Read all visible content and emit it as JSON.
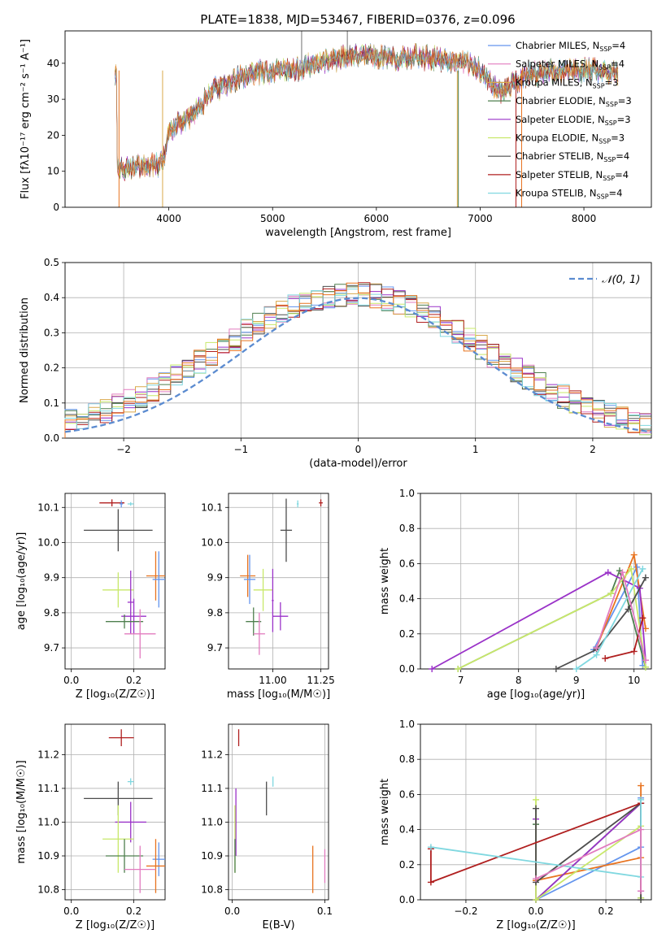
{
  "title": "PLATE=1838, MJD=53467, FIBERID=0376, z=0.096",
  "colors": {
    "c1": "#6495ed",
    "c2": "#e8731f",
    "c3": "#4f7f4f",
    "c4": "#9a32c8",
    "c5": "#d9a84a",
    "c6": "#c8e86a",
    "c7": "#4d4d4d",
    "c8": "#b01f1f",
    "c9": "#80d8e0",
    "c10": "#e27bbf"
  },
  "chart_data": [
    {
      "id": "spectrum",
      "type": "line",
      "xlabel": "wavelength [Angstrom, rest frame]",
      "ylabel": "Flux [fλ10⁻¹⁷ erg cm⁻² s⁻¹ A⁻¹]",
      "xlim": [
        3000,
        8650
      ],
      "ylim": [
        0,
        49
      ],
      "xticks": [
        "4000",
        "5000",
        "6000",
        "7000",
        "8000"
      ],
      "yticks": [
        "0",
        "10",
        "20",
        "30",
        "40"
      ],
      "grid": false,
      "legend_position": "top-right",
      "legend": [
        {
          "label": "Chabrier MILES, N",
          "sub": "SSP",
          "suffix": "=4",
          "color": "#6495ed"
        },
        {
          "label": "Salpeter MILES, N",
          "sub": "SSP",
          "suffix": "=4",
          "color": "#e27bbf"
        },
        {
          "label": "Kroupa MILES, N",
          "sub": "SSP",
          "suffix": "=3",
          "color": "#d9a84a"
        },
        {
          "label": "Chabrier ELODIE, N",
          "sub": "SSP",
          "suffix": "=3",
          "color": "#4f7f4f"
        },
        {
          "label": "Salpeter ELODIE, N",
          "sub": "SSP",
          "suffix": "=3",
          "color": "#9a32c8"
        },
        {
          "label": "Kroupa ELODIE, N",
          "sub": "SSP",
          "suffix": "=3",
          "color": "#c8e86a"
        },
        {
          "label": "Chabrier STELIB, N",
          "sub": "SSP",
          "suffix": "=4",
          "color": "#4d4d4d"
        },
        {
          "label": "Salpeter STELIB, N",
          "sub": "SSP",
          "suffix": "=4",
          "color": "#b01f1f"
        },
        {
          "label": "Kroupa STELIB, N",
          "sub": "SSP",
          "suffix": "=4",
          "color": "#80d8e0"
        }
      ],
      "continuum": [
        [
          3500,
          10
        ],
        [
          3600,
          11
        ],
        [
          3800,
          12
        ],
        [
          3900,
          12
        ],
        [
          3960,
          14
        ],
        [
          4000,
          21
        ],
        [
          4100,
          23
        ],
        [
          4200,
          25
        ],
        [
          4300,
          28
        ],
        [
          4400,
          32
        ],
        [
          4600,
          35
        ],
        [
          4800,
          37
        ],
        [
          5000,
          38
        ],
        [
          5200,
          38
        ],
        [
          5400,
          40
        ],
        [
          5600,
          41
        ],
        [
          5800,
          42
        ],
        [
          6000,
          42
        ],
        [
          6200,
          41
        ],
        [
          6400,
          42
        ],
        [
          6600,
          41
        ],
        [
          6800,
          40
        ],
        [
          6900,
          40
        ],
        [
          7000,
          38
        ],
        [
          7100,
          35
        ],
        [
          7200,
          32
        ],
        [
          7300,
          34
        ],
        [
          7500,
          37
        ],
        [
          7700,
          38
        ],
        [
          7900,
          38
        ],
        [
          8100,
          38
        ],
        [
          8300,
          37
        ]
      ]
    },
    {
      "id": "residuals",
      "type": "histogram",
      "xlabel": "(data-model)/error",
      "ylabel": "Normed distribution",
      "xlim": [
        -2.5,
        2.5
      ],
      "ylim": [
        0,
        0.5
      ],
      "xticks": [
        "−2",
        "−1",
        "0",
        "1",
        "2"
      ],
      "yticks": [
        "0.0",
        "0.1",
        "0.2",
        "0.3",
        "0.4",
        "0.5"
      ],
      "grid": true,
      "legend_position": "top-right",
      "legend_label": "𝒩(0, 1)",
      "bin_width": 0.1
    },
    {
      "id": "age_vs_Z",
      "type": "scatter",
      "xlabel": "Z [log₁₀(Z/Z☉)]",
      "ylabel": "age [log₁₀(age/yr)]",
      "xlim": [
        -0.02,
        0.3
      ],
      "ylim": [
        9.64,
        10.14
      ],
      "xticks": [
        "0.0",
        "0.2"
      ],
      "yticks": [
        "9.7",
        "9.8",
        "9.9",
        "10.0",
        "10.1"
      ],
      "points": [
        {
          "x": 0.13,
          "y": 10.113,
          "xe": 0.04,
          "ye": 0.01,
          "c": "#b01f1f"
        },
        {
          "x": 0.19,
          "y": 10.11,
          "xe": 0.01,
          "ye": 0.005,
          "c": "#80d8e0"
        },
        {
          "x": 0.16,
          "y": 10.11,
          "xe": 0.005,
          "ye": 0.01,
          "c": "#6495ed"
        },
        {
          "x": 0.15,
          "y": 10.035,
          "xe": 0.11,
          "ye": 0.06,
          "c": "#4d4d4d"
        },
        {
          "x": 0.27,
          "y": 9.905,
          "xe": 0.03,
          "ye": 0.07,
          "c": "#e8731f"
        },
        {
          "x": 0.28,
          "y": 9.895,
          "xe": 0.02,
          "ye": 0.08,
          "c": "#6495ed"
        },
        {
          "x": 0.15,
          "y": 9.865,
          "xe": 0.05,
          "ye": 0.05,
          "c": "#c8e86a"
        },
        {
          "x": 0.19,
          "y": 9.83,
          "xe": 0.01,
          "ye": 0.09,
          "c": "#9a32c8"
        },
        {
          "x": 0.2,
          "y": 9.79,
          "xe": 0.04,
          "ye": 0.05,
          "c": "#9a32c8"
        },
        {
          "x": 0.17,
          "y": 9.775,
          "xe": 0.06,
          "ye": 0.02,
          "c": "#4f7f4f"
        },
        {
          "x": 0.22,
          "y": 9.74,
          "xe": 0.05,
          "ye": 0.07,
          "c": "#e27bbf"
        }
      ]
    },
    {
      "id": "age_vs_mass",
      "type": "scatter",
      "xlabel": "mass [log₁₀(M/M☉)]",
      "ylabel": "",
      "xlim": [
        10.77,
        11.29
      ],
      "ylim": [
        9.64,
        10.14
      ],
      "xticks": [
        "11.00",
        "11.25"
      ],
      "yticks": [
        "9.7",
        "9.8",
        "9.9",
        "10.0",
        "10.1"
      ],
      "points": [
        {
          "x": 11.25,
          "y": 10.113,
          "xe": 0.01,
          "ye": 0.01,
          "c": "#b01f1f"
        },
        {
          "x": 11.13,
          "y": 10.11,
          "xe": 0.005,
          "ye": 0.01,
          "c": "#80d8e0"
        },
        {
          "x": 11.07,
          "y": 10.035,
          "xe": 0.03,
          "ye": 0.09,
          "c": "#4d4d4d"
        },
        {
          "x": 10.87,
          "y": 9.905,
          "xe": 0.04,
          "ye": 0.06,
          "c": "#e8731f"
        },
        {
          "x": 10.88,
          "y": 9.895,
          "xe": 0.03,
          "ye": 0.07,
          "c": "#6495ed"
        },
        {
          "x": 10.95,
          "y": 9.865,
          "xe": 0.05,
          "ye": 0.06,
          "c": "#c8e86a"
        },
        {
          "x": 11.0,
          "y": 9.835,
          "xe": 0.005,
          "ye": 0.09,
          "c": "#9a32c8"
        },
        {
          "x": 11.04,
          "y": 9.79,
          "xe": 0.04,
          "ye": 0.04,
          "c": "#9a32c8"
        },
        {
          "x": 10.9,
          "y": 9.775,
          "xe": 0.04,
          "ye": 0.04,
          "c": "#4f7f4f"
        },
        {
          "x": 10.93,
          "y": 9.74,
          "xe": 0.03,
          "ye": 0.06,
          "c": "#e27bbf"
        }
      ]
    },
    {
      "id": "weight_vs_age",
      "type": "line",
      "xlabel": "age [log₁₀(age/yr)]",
      "ylabel": "mass weight",
      "xlim": [
        6.3,
        10.3
      ],
      "ylim": [
        0,
        1
      ],
      "xticks": [
        "7",
        "8",
        "9",
        "10"
      ],
      "yticks": [
        "0.0",
        "0.2",
        "0.4",
        "0.6",
        "0.8",
        "1.0"
      ],
      "grid": true,
      "series": [
        {
          "c": "#6495ed",
          "pts": [
            [
              9.3,
              0.11
            ],
            [
              10.05,
              0.58
            ],
            [
              10.15,
              0.02
            ]
          ]
        },
        {
          "c": "#e8731f",
          "pts": [
            [
              9.35,
              0.12
            ],
            [
              10.0,
              0.65
            ],
            [
              10.2,
              0.23
            ]
          ]
        },
        {
          "c": "#4f7f4f",
          "pts": [
            [
              6.95,
              0.0
            ],
            [
              9.6,
              0.43
            ],
            [
              9.75,
              0.56
            ],
            [
              10.2,
              0.01
            ]
          ]
        },
        {
          "c": "#9a32c8",
          "pts": [
            [
              6.5,
              0.0
            ],
            [
              9.55,
              0.55
            ],
            [
              10.1,
              0.46
            ],
            [
              10.2,
              0.05
            ]
          ]
        },
        {
          "c": "#c8e86a",
          "pts": [
            [
              6.95,
              0.0
            ],
            [
              9.6,
              0.43
            ],
            [
              9.95,
              0.57
            ],
            [
              10.2,
              0.01
            ]
          ]
        },
        {
          "c": "#4d4d4d",
          "pts": [
            [
              8.65,
              0.0
            ],
            [
              9.35,
              0.11
            ],
            [
              9.9,
              0.34
            ],
            [
              10.2,
              0.52
            ]
          ]
        },
        {
          "c": "#b01f1f",
          "pts": [
            [
              9.5,
              0.06
            ],
            [
              10.0,
              0.1
            ],
            [
              10.15,
              0.29
            ]
          ]
        },
        {
          "c": "#80d8e0",
          "pts": [
            [
              9.0,
              0.0
            ],
            [
              9.35,
              0.08
            ],
            [
              10.15,
              0.57
            ]
          ]
        },
        {
          "c": "#e27bbf",
          "pts": [
            [
              9.35,
              0.12
            ],
            [
              9.8,
              0.55
            ],
            [
              10.2,
              0.05
            ]
          ]
        }
      ]
    },
    {
      "id": "mass_vs_Z",
      "type": "scatter",
      "xlabel": "Z [log₁₀(Z/Z☉)]",
      "ylabel": "mass [log₁₀(M/M☉)]",
      "xlim": [
        -0.02,
        0.3
      ],
      "ylim": [
        10.77,
        11.29
      ],
      "xticks": [
        "0.0",
        "0.2"
      ],
      "yticks": [
        "10.8",
        "10.9",
        "11.0",
        "11.1",
        "11.2"
      ],
      "points": [
        {
          "x": 0.16,
          "y": 11.25,
          "xe": 0.04,
          "ye": 0.025,
          "c": "#b01f1f"
        },
        {
          "x": 0.19,
          "y": 11.12,
          "xe": 0.01,
          "ye": 0.01,
          "c": "#80d8e0"
        },
        {
          "x": 0.15,
          "y": 11.07,
          "xe": 0.11,
          "ye": 0.05,
          "c": "#4d4d4d"
        },
        {
          "x": 0.19,
          "y": 11.0,
          "xe": 0.05,
          "ye": 0.06,
          "c": "#9a32c8"
        },
        {
          "x": 0.15,
          "y": 10.95,
          "xe": 0.05,
          "ye": 0.1,
          "c": "#c8e86a"
        },
        {
          "x": 0.17,
          "y": 10.9,
          "xe": 0.06,
          "ye": 0.05,
          "c": "#4f7f4f"
        },
        {
          "x": 0.28,
          "y": 10.89,
          "xe": 0.02,
          "ye": 0.05,
          "c": "#6495ed"
        },
        {
          "x": 0.27,
          "y": 10.87,
          "xe": 0.03,
          "ye": 0.08,
          "c": "#e8731f"
        },
        {
          "x": 0.22,
          "y": 10.86,
          "xe": 0.05,
          "ye": 0.07,
          "c": "#e27bbf"
        }
      ]
    },
    {
      "id": "mass_vs_ebv",
      "type": "scatter",
      "xlabel": "E(B-V)",
      "ylabel": "",
      "xlim": [
        -0.004,
        0.104
      ],
      "ylim": [
        10.77,
        11.29
      ],
      "xticks": [
        "0.0",
        "0.1"
      ],
      "yticks": [
        "10.8",
        "10.9",
        "11.0",
        "11.1",
        "11.2"
      ],
      "points": [
        {
          "x": 0.007,
          "y": 11.25,
          "xe": 0,
          "ye": 0.025,
          "c": "#b01f1f"
        },
        {
          "x": 0.044,
          "y": 11.12,
          "xe": 0,
          "ye": 0.015,
          "c": "#80d8e0"
        },
        {
          "x": 0.037,
          "y": 11.07,
          "xe": 0,
          "ye": 0.05,
          "c": "#4d4d4d"
        },
        {
          "x": 0.004,
          "y": 11.0,
          "xe": 0,
          "ye": 0.1,
          "c": "#9a32c8"
        },
        {
          "x": 0.003,
          "y": 10.95,
          "xe": 0,
          "ye": 0.1,
          "c": "#c8e86a"
        },
        {
          "x": 0.003,
          "y": 10.9,
          "xe": 0,
          "ye": 0.05,
          "c": "#4f7f4f"
        },
        {
          "x": 0.087,
          "y": 10.86,
          "xe": 0,
          "ye": 0.07,
          "c": "#e8731f"
        },
        {
          "x": 0.1,
          "y": 10.87,
          "xe": 0,
          "ye": 0.05,
          "c": "#e27bbf"
        }
      ]
    },
    {
      "id": "weight_vs_Z",
      "type": "line",
      "xlabel": "Z [log₁₀(Z/Z☉)]",
      "ylabel": "mass weight",
      "xlim": [
        -0.33,
        0.33
      ],
      "ylim": [
        0,
        1
      ],
      "xticks": [
        "−0.2",
        "0.0",
        "0.2"
      ],
      "yticks": [
        "0.0",
        "0.2",
        "0.4",
        "0.6",
        "0.8",
        "1.0"
      ],
      "grid": true,
      "series": [
        {
          "c": "#6495ed",
          "pts": [
            [
              0.0,
              0.0
            ],
            [
              0.3,
              0.3
            ],
            [
              0.3,
              0.58
            ]
          ]
        },
        {
          "c": "#e8731f",
          "pts": [
            [
              0.0,
              0.11
            ],
            [
              0.3,
              0.24
            ],
            [
              0.3,
              0.65
            ]
          ]
        },
        {
          "c": "#4f7f4f",
          "pts": [
            [
              0.0,
              0.43
            ],
            [
              0.0,
              0.0
            ],
            [
              0.3,
              0.55
            ],
            [
              0.3,
              0.01
            ]
          ]
        },
        {
          "c": "#9a32c8",
          "pts": [
            [
              0.0,
              0.46
            ],
            [
              0.0,
              0.0
            ],
            [
              0.3,
              0.55
            ],
            [
              0.3,
              0.05
            ]
          ]
        },
        {
          "c": "#c8e86a",
          "pts": [
            [
              0.0,
              0.57
            ],
            [
              0.0,
              0.0
            ],
            [
              0.3,
              0.42
            ],
            [
              0.3,
              0.01
            ]
          ]
        },
        {
          "c": "#4d4d4d",
          "pts": [
            [
              0.0,
              0.52
            ],
            [
              0.0,
              0.1
            ],
            [
              0.3,
              0.55
            ],
            [
              0.3,
              0.0
            ]
          ]
        },
        {
          "c": "#b01f1f",
          "pts": [
            [
              -0.3,
              0.29
            ],
            [
              -0.3,
              0.1
            ],
            [
              0.3,
              0.55
            ]
          ]
        },
        {
          "c": "#80d8e0",
          "pts": [
            [
              -0.3,
              0.3
            ],
            [
              0.3,
              0.13
            ],
            [
              0.3,
              0.57
            ]
          ]
        },
        {
          "c": "#e27bbf",
          "pts": [
            [
              0.0,
              0.12
            ],
            [
              0.3,
              0.4
            ],
            [
              0.3,
              0.05
            ]
          ]
        }
      ]
    }
  ]
}
